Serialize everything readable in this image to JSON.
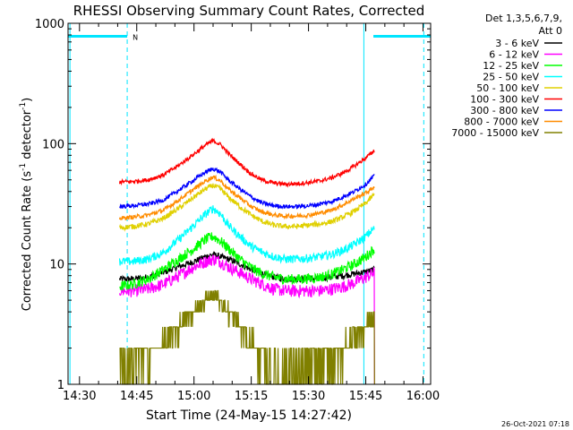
{
  "chart_data": {
    "type": "line",
    "title": "RHESSI Observing Summary Count Rates, Corrected",
    "xlabel": "Start Time (24-May-15 14:27:42)",
    "ylabel_main": "Corrected Count Rate (s",
    "ylabel_sup1": "-1",
    "ylabel_mid": " detector",
    "ylabel_sup2": "-1",
    "ylabel_end": ")",
    "yscale": "log",
    "ylim": [
      1,
      1000
    ],
    "xlim_min": [
      867,
      962
    ],
    "x_ticks": [
      {
        "min": 870,
        "label": "14:30"
      },
      {
        "min": 885,
        "label": "14:45"
      },
      {
        "min": 900,
        "label": "15:00"
      },
      {
        "min": 915,
        "label": "15:15"
      },
      {
        "min": 930,
        "label": "15:30"
      },
      {
        "min": 945,
        "label": "15:45"
      },
      {
        "min": 960,
        "label": "16:00"
      }
    ],
    "y_ticks": [
      {
        "value": 1,
        "label": "1"
      },
      {
        "value": 10,
        "label": "10"
      },
      {
        "value": 100,
        "label": "100"
      },
      {
        "value": 1000,
        "label": "1000"
      }
    ],
    "legend_header": [
      "Det 1,3,5,6,7,9,",
      "Att 0"
    ],
    "legend_position": "right",
    "series": [
      {
        "name": "3 - 6 keV",
        "color": "#000000",
        "x": [
          880.5,
          884,
          888,
          892,
          896,
          900,
          903,
          905,
          907,
          909,
          912,
          915,
          918,
          921,
          924,
          927,
          930,
          933,
          936,
          939,
          942,
          945,
          947.3
        ],
        "y": [
          7.5,
          7.5,
          7.8,
          8.5,
          9.5,
          10.5,
          11.5,
          12,
          11.5,
          11,
          10,
          9,
          8.3,
          7.8,
          7.5,
          7.5,
          7.5,
          7.6,
          7.8,
          8,
          8.3,
          8.6,
          9
        ]
      },
      {
        "name": "6 - 12 keV",
        "color": "#ff00ff",
        "x": [
          880.5,
          884,
          888,
          892,
          896,
          900,
          903,
          905,
          907,
          909,
          912,
          915,
          918,
          921,
          924,
          927,
          930,
          933,
          936,
          939,
          942,
          945,
          947.3
        ],
        "y": [
          6,
          6,
          6.2,
          6.8,
          8,
          9.5,
          10.5,
          11,
          10.5,
          9.5,
          8.5,
          7.5,
          6.8,
          6.2,
          6,
          6,
          6,
          6,
          6.2,
          6.5,
          7,
          7.8,
          8.5
        ]
      },
      {
        "name": "12 - 25 keV",
        "color": "#00ff00",
        "x": [
          880.5,
          884,
          888,
          892,
          896,
          900,
          903,
          905,
          907,
          909,
          912,
          915,
          918,
          921,
          924,
          927,
          930,
          933,
          936,
          939,
          942,
          945,
          947.3
        ],
        "y": [
          6.5,
          6.8,
          7.5,
          9,
          11,
          13.5,
          16,
          17,
          15.5,
          13.5,
          11,
          9.3,
          8.3,
          7.8,
          7.5,
          7.5,
          7.6,
          7.8,
          8.2,
          9,
          10,
          11.5,
          13.5
        ]
      },
      {
        "name": "25 - 50 keV",
        "color": "#00ffff",
        "x": [
          880.5,
          884,
          888,
          892,
          896,
          900,
          903,
          905,
          907,
          909,
          912,
          915,
          918,
          921,
          924,
          927,
          930,
          933,
          936,
          939,
          942,
          945,
          947.3
        ],
        "y": [
          10.5,
          10.5,
          11,
          12.5,
          16,
          21,
          26,
          29,
          26,
          21,
          17,
          14,
          12.5,
          11.5,
          11,
          11,
          11.2,
          11.5,
          12,
          13,
          14.5,
          17,
          20
        ]
      },
      {
        "name": "50 - 100 keV",
        "color": "#e0d000",
        "x": [
          880.5,
          884,
          888,
          892,
          896,
          900,
          903,
          905,
          907,
          909,
          912,
          915,
          918,
          921,
          924,
          927,
          930,
          933,
          936,
          939,
          942,
          945,
          947.3
        ],
        "y": [
          20,
          20.5,
          21.5,
          24,
          29,
          36,
          42,
          45,
          42,
          36,
          30,
          25.5,
          22.5,
          21,
          20.5,
          20.5,
          21,
          21.5,
          22.5,
          24.5,
          27.5,
          32,
          38
        ]
      },
      {
        "name": "100 - 300 keV",
        "color": "#ff0000",
        "x": [
          880.5,
          884,
          888,
          892,
          896,
          900,
          903,
          905,
          907,
          909,
          912,
          915,
          918,
          921,
          924,
          927,
          930,
          933,
          936,
          939,
          942,
          945,
          947.3
        ],
        "y": [
          48,
          48.5,
          50,
          55,
          66,
          82,
          97,
          106,
          98,
          83,
          68,
          56,
          49.5,
          47,
          46,
          46.5,
          47.5,
          49,
          52,
          57,
          65,
          76,
          88
        ]
      },
      {
        "name": "300 - 800 keV",
        "color": "#0000ff",
        "x": [
          880.5,
          884,
          888,
          892,
          896,
          900,
          903,
          905,
          907,
          909,
          912,
          915,
          918,
          921,
          924,
          927,
          930,
          933,
          936,
          939,
          942,
          945,
          947.3
        ],
        "y": [
          30,
          30.5,
          31.5,
          34,
          41,
          50,
          58,
          62,
          58,
          50,
          42,
          36,
          32,
          30.5,
          30,
          30,
          30.5,
          31.5,
          33,
          36,
          40,
          46,
          54
        ]
      },
      {
        "name": "800 - 7000 keV",
        "color": "#ff8c00",
        "x": [
          880.5,
          884,
          888,
          892,
          896,
          900,
          903,
          905,
          907,
          909,
          912,
          915,
          918,
          921,
          924,
          927,
          930,
          933,
          936,
          939,
          942,
          945,
          947.3
        ],
        "y": [
          24,
          24.5,
          25.5,
          28,
          34,
          42,
          49,
          53,
          49,
          42,
          35.5,
          30,
          27,
          25.5,
          25,
          25,
          25.5,
          26.5,
          28,
          31,
          35,
          39,
          44
        ]
      },
      {
        "name": "7000 - 15000 keV",
        "color": "#808000",
        "x": [
          880.5,
          884,
          888,
          892,
          896,
          900,
          903,
          905,
          907,
          909,
          912,
          915,
          918,
          921,
          924,
          927,
          930,
          933,
          936,
          939,
          942,
          945,
          947.3
        ],
        "y": [
          1.5,
          1.6,
          1.8,
          2.2,
          3,
          4,
          5,
          5.5,
          5,
          4,
          3,
          2.2,
          1.6,
          1.3,
          1.3,
          1.4,
          1.4,
          1.5,
          1.7,
          2,
          2.5,
          3,
          3.5
        ]
      }
    ],
    "attenuator_bars": [
      {
        "x_start_min": 867,
        "x_end_min": 882.5,
        "value": 780
      },
      {
        "x_start_min": 947,
        "x_end_min": 962,
        "value": 780
      }
    ],
    "attenuator_label": "N",
    "attenuator_label_min": 882.5,
    "solid_markers_min": [
      867.5,
      944.5
    ],
    "dashed_markers_min": [
      882.5,
      960.2
    ],
    "data_cutoff_min": 947.4,
    "grid": false
  },
  "footer": {
    "timestamp": "26-Oct-2021 07:18"
  },
  "colors": {
    "axis": "#000000",
    "attenuator": "#00e5ff",
    "background": "#ffffff"
  }
}
